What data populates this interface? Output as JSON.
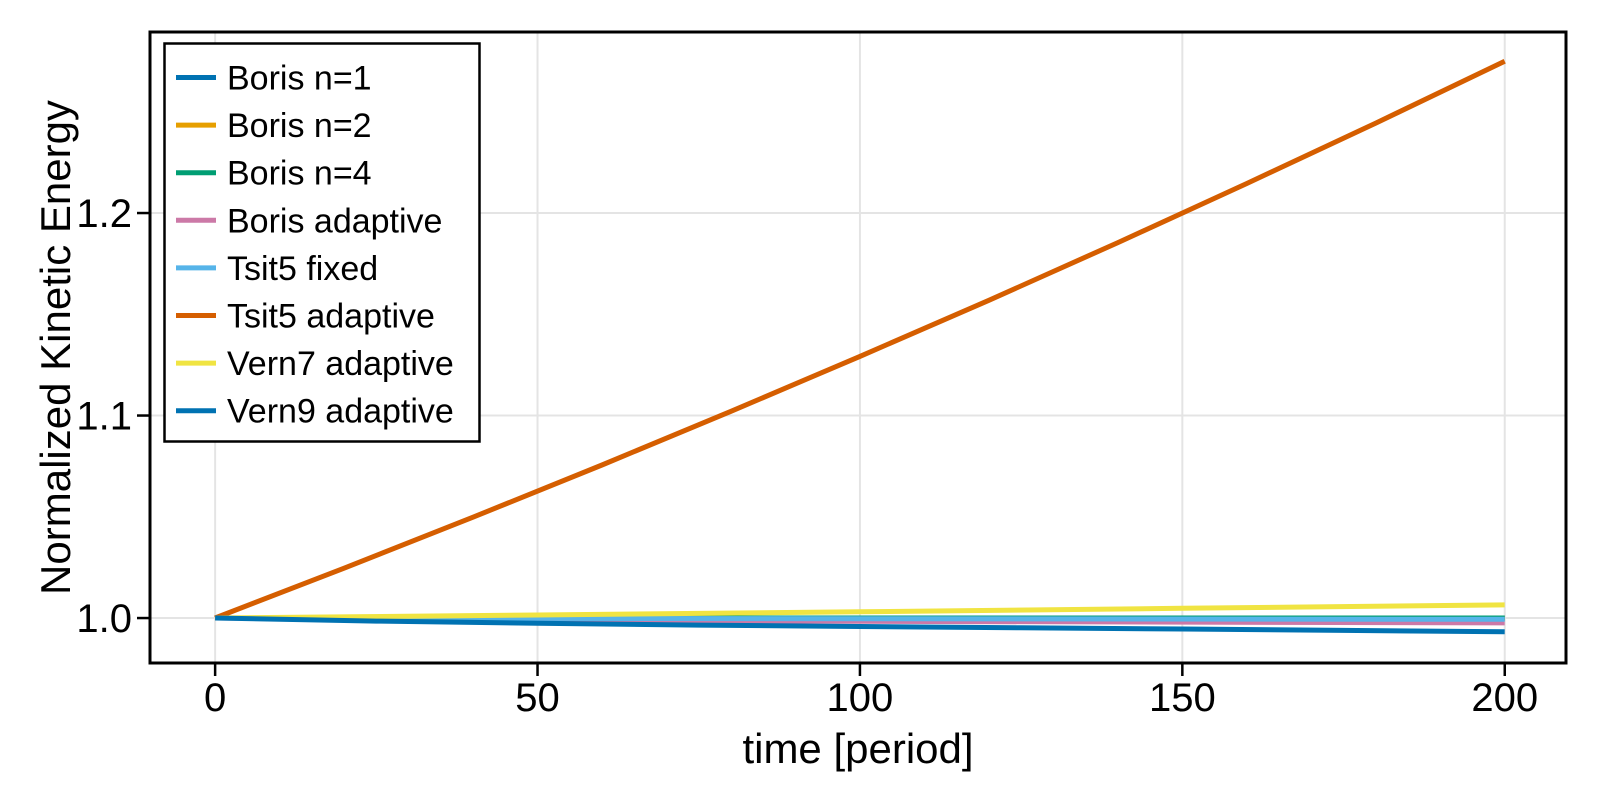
{
  "figure": {
    "background": "#ffffff",
    "title": ""
  },
  "colors": {
    "spine": "#000000",
    "grid": "#e4e4e4",
    "tick": "#000000",
    "text": "#000000",
    "legend_background": "#ffffff",
    "legend_border": "#000000"
  },
  "chart_data": {
    "type": "line",
    "title": "",
    "xlabel": "time [period]",
    "ylabel": "Normalized Kinetic Energy",
    "xlim": [
      -10.1,
      209.5
    ],
    "ylim": [
      0.9778,
      1.2894
    ],
    "xticks": [
      0,
      50,
      100,
      150,
      200
    ],
    "xtick_labels": [
      "0",
      "50",
      "100",
      "150",
      "200"
    ],
    "yticks": [
      1.0,
      1.1,
      1.2
    ],
    "ytick_labels": [
      "1.0",
      "1.1",
      "1.2"
    ],
    "grid": true,
    "legend_position": "top-left",
    "series": [
      {
        "name": "Boris n=1",
        "color": "#0072B2",
        "x": [
          0,
          200
        ],
        "y": [
          1.0,
          1.0
        ]
      },
      {
        "name": "Boris n=2",
        "color": "#E69F00",
        "x": [
          0,
          200
        ],
        "y": [
          1.0,
          1.0
        ]
      },
      {
        "name": "Boris n=4",
        "color": "#009E73",
        "x": [
          0,
          200
        ],
        "y": [
          1.0,
          1.0
        ]
      },
      {
        "name": "Boris adaptive",
        "color": "#CC79A7",
        "x": [
          0,
          50,
          100,
          150,
          200
        ],
        "y": [
          1.0,
          0.9989,
          0.9984,
          0.998,
          0.9976
        ]
      },
      {
        "name": "Tsit5 fixed",
        "color": "#56B4E9",
        "x": [
          0,
          100,
          200
        ],
        "y": [
          1.0,
          0.9997,
          0.9994
        ]
      },
      {
        "name": "Tsit5 adaptive",
        "color": "#D55E00",
        "x": [
          0,
          20,
          40,
          60,
          80,
          100,
          120,
          140,
          160,
          180,
          200
        ],
        "y": [
          1.0,
          1.0246,
          1.0498,
          1.0756,
          1.1021,
          1.1292,
          1.1569,
          1.1854,
          1.2146,
          1.2444,
          1.275
        ]
      },
      {
        "name": "Vern7 adaptive",
        "color": "#F0E442",
        "x": [
          0,
          50,
          100,
          150,
          200
        ],
        "y": [
          1.0,
          1.0015,
          1.0031,
          1.0048,
          1.0065
        ]
      },
      {
        "name": "Vern9 adaptive",
        "color": "#0072B2",
        "x": [
          0,
          25,
          50,
          75,
          100,
          125,
          150,
          175,
          200
        ],
        "y": [
          1.0,
          0.9985,
          0.9974,
          0.9965,
          0.9958,
          0.9952,
          0.9946,
          0.9939,
          0.9932
        ]
      }
    ]
  }
}
